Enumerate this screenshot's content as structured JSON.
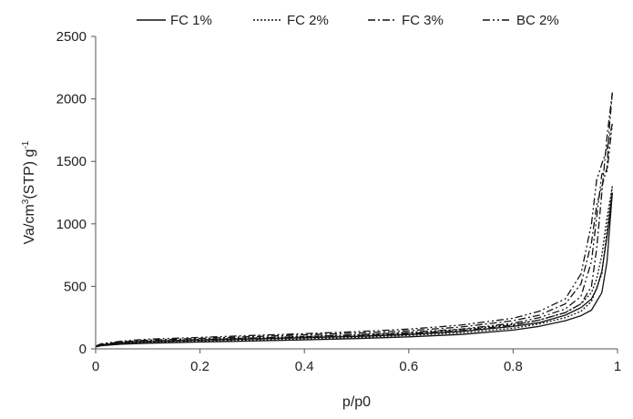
{
  "chart_data": {
    "type": "line",
    "title": "",
    "xlabel": "p/p0",
    "ylabel_base": "Va/cm",
    "ylabel_sup1": "3",
    "ylabel_mid": "(STP) g",
    "ylabel_sup2": "-1",
    "xlim": [
      0,
      1
    ],
    "ylim": [
      0,
      2500
    ],
    "xticks": [
      "0",
      "0.2",
      "0.4",
      "0.6",
      "0.8",
      "1"
    ],
    "xtick_values": [
      0,
      0.2,
      0.4,
      0.6,
      0.8,
      1
    ],
    "yticks": [
      "0",
      "500",
      "1000",
      "1500",
      "2000",
      "2500"
    ],
    "ytick_values": [
      0,
      500,
      1000,
      1500,
      2000,
      2500
    ],
    "grid": false,
    "legend_position": "top",
    "series": [
      {
        "name": "FC 1%",
        "dash": "solid",
        "adsorption": [
          [
            0,
            15
          ],
          [
            0.01,
            25
          ],
          [
            0.05,
            38
          ],
          [
            0.1,
            45
          ],
          [
            0.2,
            55
          ],
          [
            0.3,
            63
          ],
          [
            0.4,
            72
          ],
          [
            0.5,
            82
          ],
          [
            0.6,
            96
          ],
          [
            0.7,
            115
          ],
          [
            0.8,
            150
          ],
          [
            0.85,
            180
          ],
          [
            0.9,
            225
          ],
          [
            0.93,
            265
          ],
          [
            0.95,
            310
          ],
          [
            0.97,
            450
          ],
          [
            0.98,
            700
          ],
          [
            0.99,
            1250
          ]
        ],
        "desorption": [
          [
            0.99,
            1250
          ],
          [
            0.98,
            900
          ],
          [
            0.97,
            620
          ],
          [
            0.96,
            480
          ],
          [
            0.95,
            400
          ],
          [
            0.93,
            330
          ],
          [
            0.9,
            270
          ],
          [
            0.85,
            210
          ],
          [
            0.8,
            180
          ],
          [
            0.7,
            140
          ],
          [
            0.6,
            115
          ],
          [
            0.5,
            100
          ],
          [
            0.4,
            90
          ],
          [
            0.3,
            80
          ],
          [
            0.2,
            70
          ],
          [
            0.1,
            58
          ],
          [
            0.05,
            48
          ],
          [
            0.01,
            30
          ],
          [
            0,
            15
          ]
        ]
      },
      {
        "name": "FC 2%",
        "dash": "dotted",
        "adsorption": [
          [
            0,
            18
          ],
          [
            0.01,
            28
          ],
          [
            0.05,
            42
          ],
          [
            0.1,
            50
          ],
          [
            0.2,
            60
          ],
          [
            0.3,
            70
          ],
          [
            0.4,
            80
          ],
          [
            0.5,
            92
          ],
          [
            0.6,
            108
          ],
          [
            0.7,
            128
          ],
          [
            0.8,
            165
          ],
          [
            0.85,
            200
          ],
          [
            0.9,
            250
          ],
          [
            0.93,
            300
          ],
          [
            0.95,
            380
          ],
          [
            0.97,
            600
          ],
          [
            0.98,
            950
          ],
          [
            0.99,
            1300
          ]
        ],
        "desorption": [
          [
            0.99,
            1300
          ],
          [
            0.98,
            1050
          ],
          [
            0.97,
            750
          ],
          [
            0.96,
            560
          ],
          [
            0.95,
            450
          ],
          [
            0.93,
            360
          ],
          [
            0.9,
            290
          ],
          [
            0.85,
            230
          ],
          [
            0.8,
            195
          ],
          [
            0.7,
            155
          ],
          [
            0.6,
            128
          ],
          [
            0.5,
            112
          ],
          [
            0.4,
            100
          ],
          [
            0.3,
            88
          ],
          [
            0.2,
            76
          ],
          [
            0.1,
            62
          ],
          [
            0.05,
            50
          ],
          [
            0.01,
            32
          ],
          [
            0,
            18
          ]
        ]
      },
      {
        "name": "FC 3%",
        "dash": "dash-dot",
        "adsorption": [
          [
            0,
            20
          ],
          [
            0.01,
            32
          ],
          [
            0.05,
            48
          ],
          [
            0.1,
            57
          ],
          [
            0.2,
            68
          ],
          [
            0.3,
            78
          ],
          [
            0.4,
            90
          ],
          [
            0.5,
            104
          ],
          [
            0.6,
            122
          ],
          [
            0.7,
            145
          ],
          [
            0.8,
            190
          ],
          [
            0.85,
            230
          ],
          [
            0.9,
            290
          ],
          [
            0.93,
            360
          ],
          [
            0.95,
            500
          ],
          [
            0.96,
            800
          ],
          [
            0.97,
            1250
          ],
          [
            0.98,
            1700
          ],
          [
            0.99,
            2050
          ]
        ],
        "desorption": [
          [
            0.99,
            2050
          ],
          [
            0.985,
            1800
          ],
          [
            0.98,
            1450
          ],
          [
            0.97,
            1300
          ],
          [
            0.96,
            1150
          ],
          [
            0.95,
            850
          ],
          [
            0.93,
            520
          ],
          [
            0.9,
            360
          ],
          [
            0.85,
            270
          ],
          [
            0.8,
            225
          ],
          [
            0.7,
            175
          ],
          [
            0.6,
            145
          ],
          [
            0.5,
            126
          ],
          [
            0.4,
            112
          ],
          [
            0.3,
            98
          ],
          [
            0.2,
            84
          ],
          [
            0.1,
            70
          ],
          [
            0.05,
            56
          ],
          [
            0.01,
            36
          ],
          [
            0,
            20
          ]
        ]
      },
      {
        "name": "BC 2%",
        "dash": "dash-dot-dot",
        "adsorption": [
          [
            0,
            22
          ],
          [
            0.01,
            35
          ],
          [
            0.05,
            52
          ],
          [
            0.1,
            62
          ],
          [
            0.2,
            74
          ],
          [
            0.3,
            86
          ],
          [
            0.4,
            98
          ],
          [
            0.5,
            113
          ],
          [
            0.6,
            132
          ],
          [
            0.7,
            158
          ],
          [
            0.8,
            205
          ],
          [
            0.85,
            250
          ],
          [
            0.9,
            320
          ],
          [
            0.93,
            420
          ],
          [
            0.95,
            700
          ],
          [
            0.96,
            1050
          ],
          [
            0.97,
            1400
          ],
          [
            0.98,
            1420
          ],
          [
            0.99,
            1800
          ]
        ],
        "desorption": [
          [
            0.99,
            1800
          ],
          [
            0.98,
            1600
          ],
          [
            0.97,
            1480
          ],
          [
            0.96,
            1350
          ],
          [
            0.95,
            1000
          ],
          [
            0.93,
            600
          ],
          [
            0.9,
            400
          ],
          [
            0.85,
            300
          ],
          [
            0.8,
            245
          ],
          [
            0.7,
            190
          ],
          [
            0.6,
            158
          ],
          [
            0.5,
            138
          ],
          [
            0.4,
            122
          ],
          [
            0.3,
            107
          ],
          [
            0.2,
            92
          ],
          [
            0.1,
            77
          ],
          [
            0.05,
            62
          ],
          [
            0.01,
            40
          ],
          [
            0,
            22
          ]
        ]
      }
    ]
  },
  "colors": {
    "line": "#111111",
    "axis": "#555555",
    "text": "#222222"
  }
}
